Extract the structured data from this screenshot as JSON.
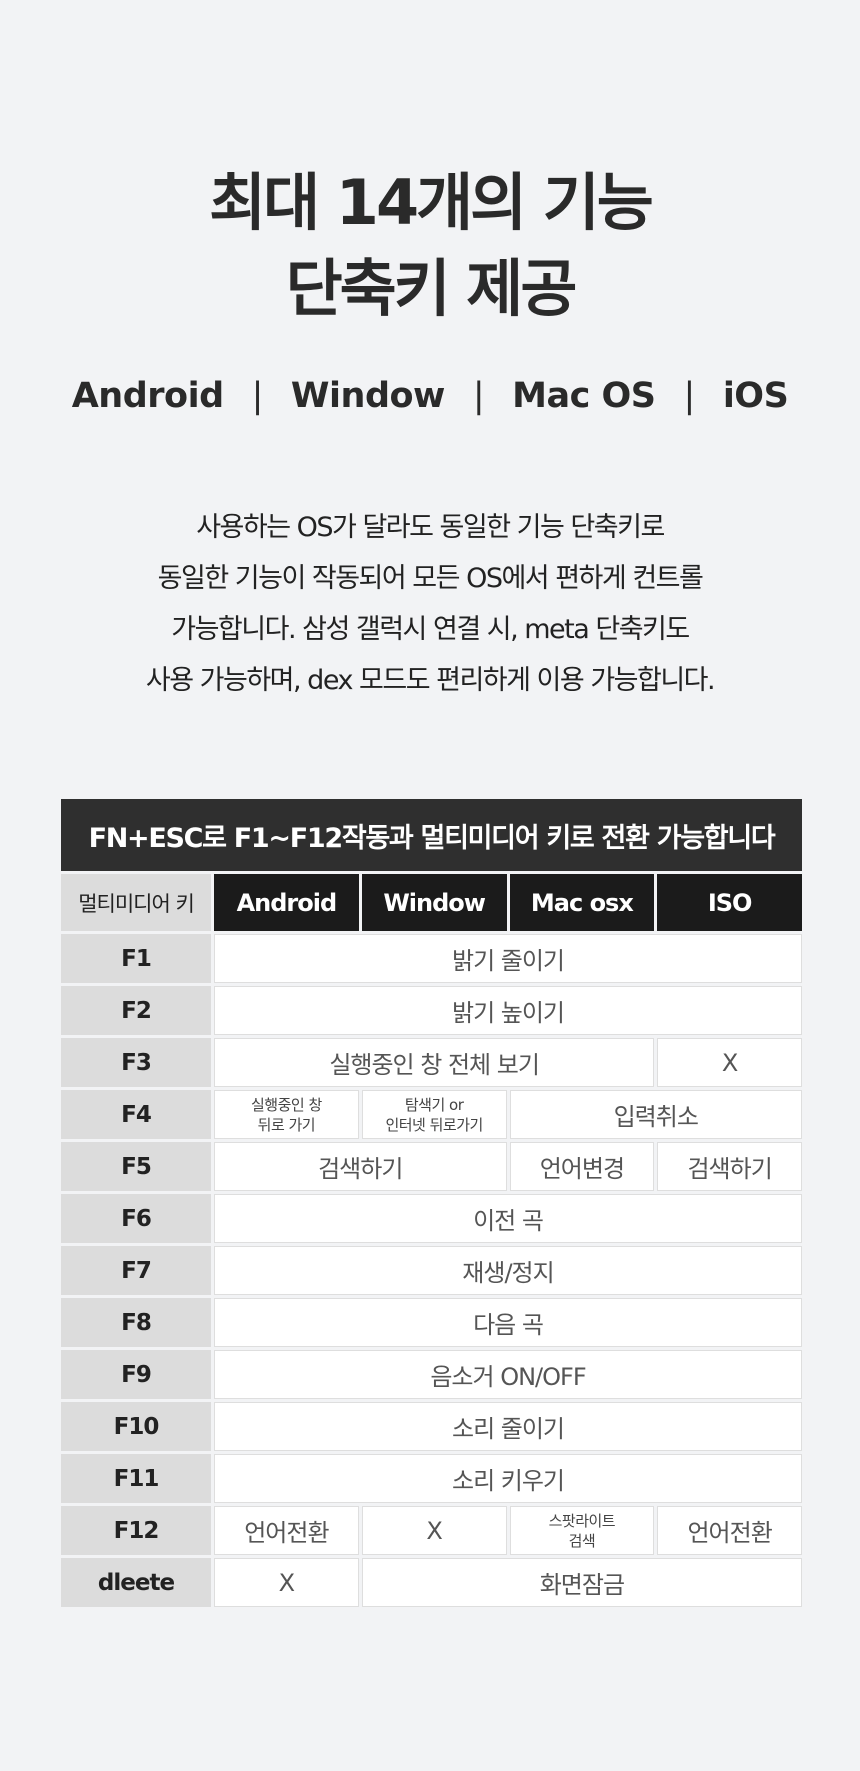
{
  "title": {
    "line1": "최대 14개의 기능",
    "line2": "단축키 제공"
  },
  "os_list": [
    "Android",
    "Window",
    "Mac OS",
    "iOS"
  ],
  "os_separator": "|",
  "description": [
    "사용하는 OS가 달라도 동일한 기능 단축키로",
    "동일한 기능이 작동되어 모든 OS에서 편하게 컨트롤",
    "가능합니다. 삼성 갤럭시 연결 시, meta 단축키도",
    "사용 가능하며, dex 모드도 편리하게 이용 가능합니다."
  ],
  "table": {
    "banner": "FN+ESC로 F1~F12작동과 멀티미디어 키로 전환 가능합니다",
    "headers": [
      "멀티미디어 키",
      "Android",
      "Window",
      "Mac osx",
      "ISO"
    ],
    "rows": [
      {
        "key": "F1",
        "cells": [
          "밝기 줄이기"
        ]
      },
      {
        "key": "F2",
        "cells": [
          "밝기 높이기"
        ]
      },
      {
        "key": "F3",
        "cells": [
          "실행중인 창 전체 보기",
          "X"
        ]
      },
      {
        "key": "F4",
        "cells": [
          "실행중인 창\n뒤로 가기",
          "탐색기 or\n인터넷 뒤로가기",
          "입력취소"
        ]
      },
      {
        "key": "F5",
        "cells": [
          "검색하기",
          "언어변경",
          "검색하기"
        ]
      },
      {
        "key": "F6",
        "cells": [
          "이전 곡"
        ]
      },
      {
        "key": "F7",
        "cells": [
          "재생/정지"
        ]
      },
      {
        "key": "F8",
        "cells": [
          "다음 곡"
        ]
      },
      {
        "key": "F9",
        "cells": [
          "음소거 ON/OFF"
        ]
      },
      {
        "key": "F10",
        "cells": [
          "소리 줄이기"
        ]
      },
      {
        "key": "F11",
        "cells": [
          "소리 키우기"
        ]
      },
      {
        "key": "F12",
        "cells": [
          "언어전환",
          "X",
          "스팟라이트\n검색",
          "언어전환"
        ]
      },
      {
        "key": "dleete",
        "cells": [
          "X",
          "화면잠금"
        ]
      }
    ]
  }
}
